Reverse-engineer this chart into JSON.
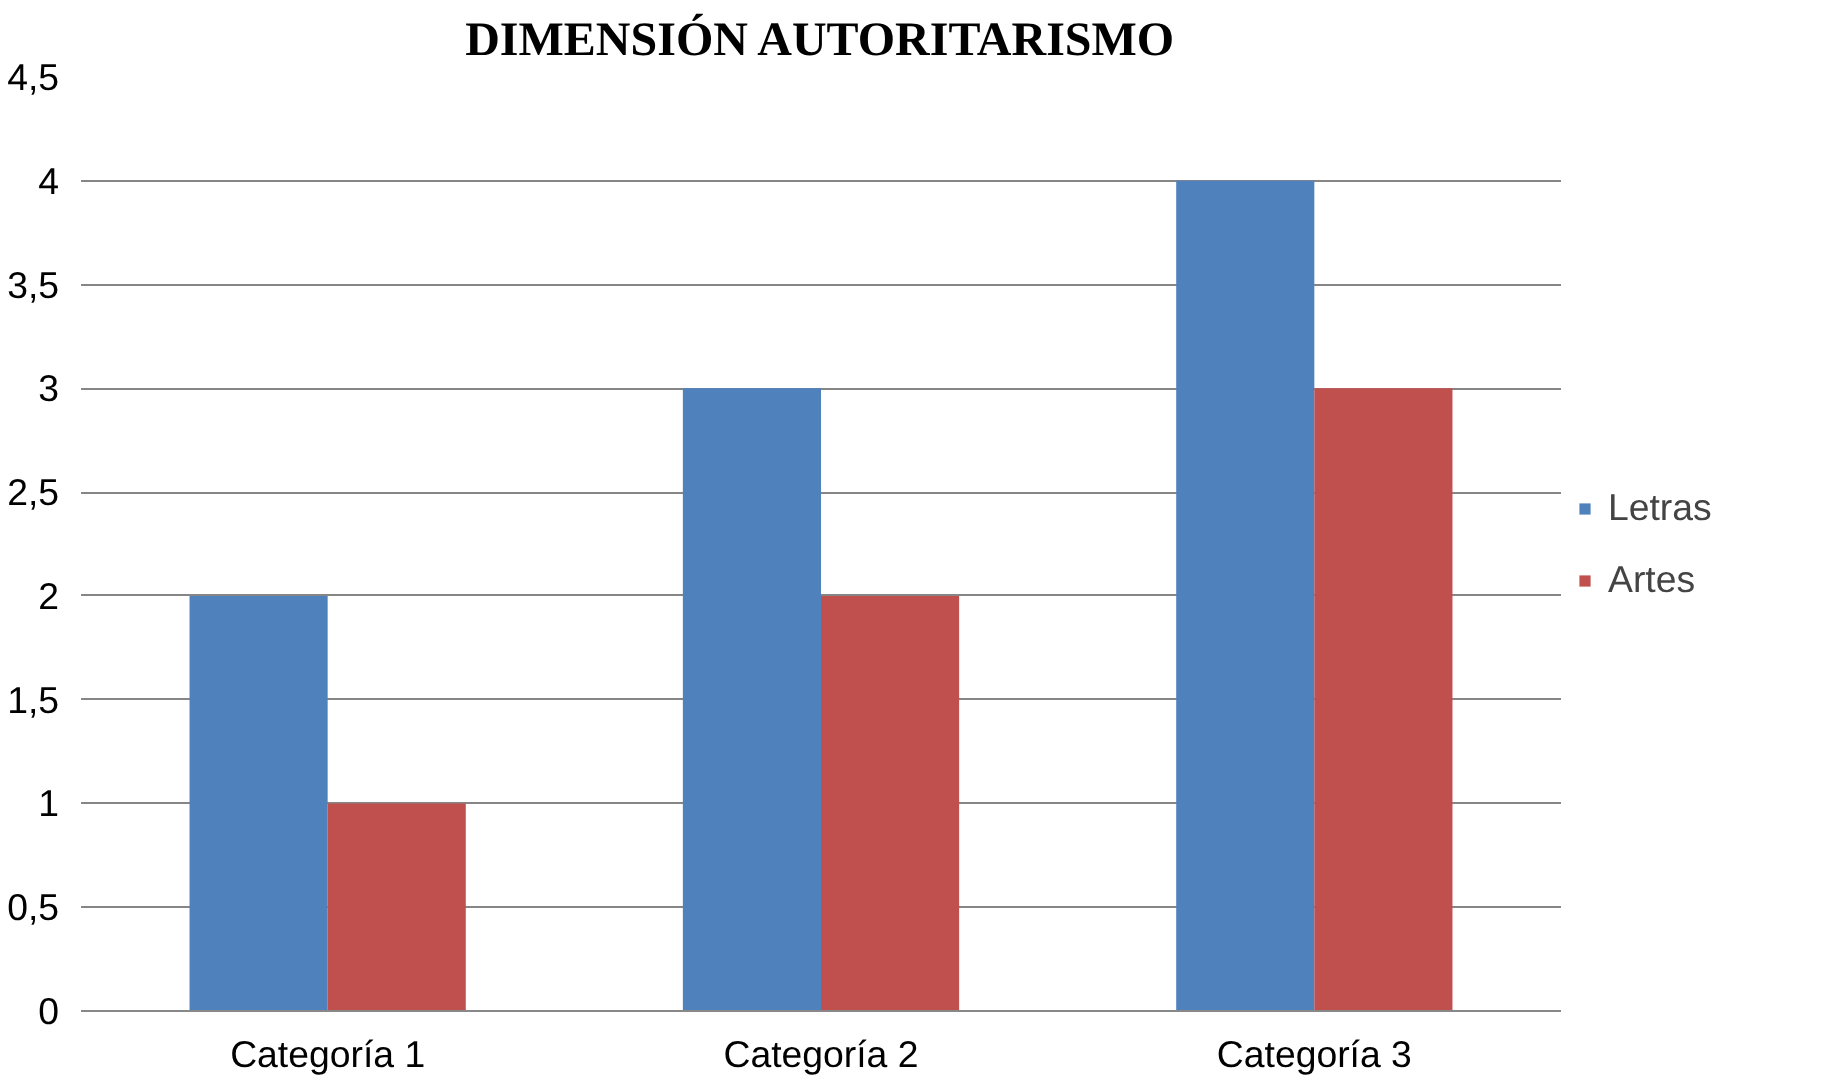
{
  "chart_data": {
    "type": "bar",
    "title": "DIMENSIÓN AUTORITARISMO",
    "categories": [
      "Categoría 1",
      "Categoría 2",
      "Categoría 3"
    ],
    "series": [
      {
        "name": "Letras",
        "color": "#4f81bd",
        "values": [
          2,
          3,
          4
        ]
      },
      {
        "name": "Artes",
        "color": "#c0504d",
        "values": [
          1,
          2,
          3
        ]
      }
    ],
    "ylim": [
      0,
      4.5
    ],
    "yticks": [
      0,
      {
        "value": 0.5,
        "label": "0,5"
      },
      1,
      {
        "value": 1.5,
        "label": "1,5"
      },
      2,
      {
        "value": 2.5,
        "label": "2,5"
      },
      3,
      {
        "value": 3.5,
        "label": "3,5"
      },
      4,
      {
        "value": 4.5,
        "label": "4,5"
      }
    ],
    "grid": "y",
    "legend": "right"
  }
}
